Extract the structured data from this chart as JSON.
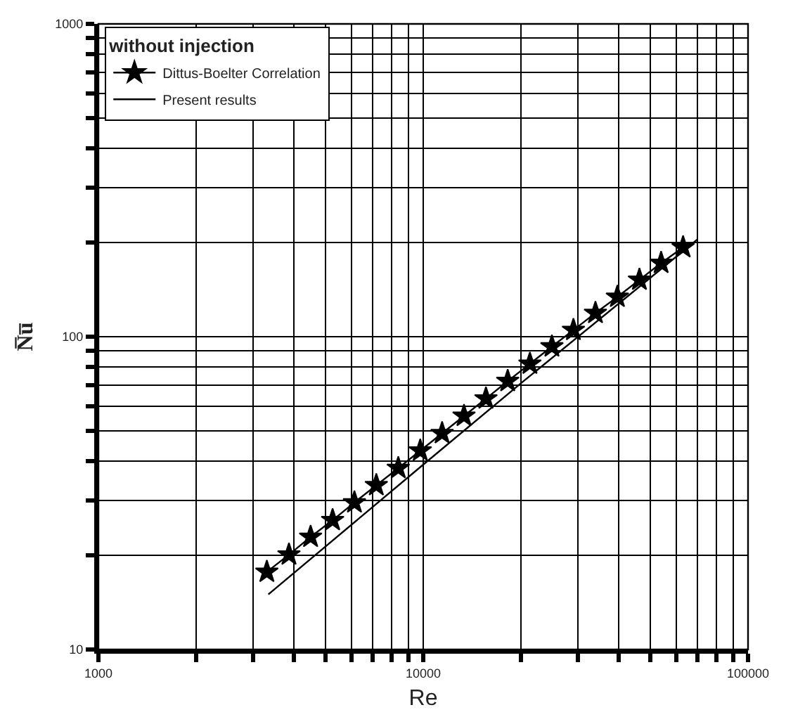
{
  "chart_data": {
    "type": "line",
    "xlabel": "Re",
    "ylabel": "N̅u̅",
    "legend_title": "without injection",
    "log": "xy",
    "grid": true,
    "legend": "top left",
    "xlim": [
      1000,
      100000
    ],
    "ylim": [
      10,
      1000
    ],
    "xticks": [
      1000,
      {
        "value": 2000,
        "label": null
      },
      {
        "value": 3000,
        "label": null
      },
      {
        "value": 4000,
        "label": null
      },
      {
        "value": 5000,
        "label": null
      },
      {
        "value": 6000,
        "label": null
      },
      {
        "value": 7000,
        "label": null
      },
      {
        "value": 8000,
        "label": null
      },
      {
        "value": 9000,
        "label": null
      },
      10000,
      {
        "value": 20000,
        "label": null
      },
      {
        "value": 30000,
        "label": null
      },
      {
        "value": 40000,
        "label": null
      },
      {
        "value": 50000,
        "label": null
      },
      {
        "value": 60000,
        "label": null
      },
      {
        "value": 70000,
        "label": null
      },
      {
        "value": 80000,
        "label": null
      },
      {
        "value": 90000,
        "label": null
      },
      100000
    ],
    "yticks": [
      10,
      {
        "value": 20,
        "label": null
      },
      {
        "value": 30,
        "label": null
      },
      {
        "value": 40,
        "label": null
      },
      {
        "value": 50,
        "label": null
      },
      {
        "value": 60,
        "label": null
      },
      {
        "value": 70,
        "label": null
      },
      {
        "value": 80,
        "label": null
      },
      {
        "value": 90,
        "label": null
      },
      100,
      {
        "value": 200,
        "label": null
      },
      {
        "value": 300,
        "label": null
      },
      {
        "value": 400,
        "label": null
      },
      {
        "value": 500,
        "label": null
      },
      {
        "value": 600,
        "label": null
      },
      {
        "value": 700,
        "label": null
      },
      {
        "value": 800,
        "label": null
      },
      {
        "value": 900,
        "label": null
      },
      1000
    ],
    "series": [
      {
        "name": "Dittus-Boelter Correlation",
        "color": "#000000",
        "marker": "star",
        "line_style": "solid",
        "x": [
          3300,
          3860,
          4500,
          5260,
          6140,
          7170,
          8380,
          9790,
          11430,
          13350,
          15600,
          18200,
          21300,
          24900,
          29000,
          33900,
          39600,
          46300,
          54000,
          63100
        ],
        "values": [
          17.7,
          20.1,
          22.9,
          25.9,
          29.5,
          33.5,
          38,
          43.2,
          49.1,
          55.8,
          63.4,
          72.1,
          81.9,
          93,
          105,
          119,
          134,
          152,
          172,
          193
        ]
      },
      {
        "name": "Present results",
        "color": "#000000",
        "marker": "none",
        "line_style": "solid",
        "x": [
          3335,
          10000,
          20000,
          70000
        ],
        "values": [
          15,
          39,
          71,
          205
        ]
      }
    ]
  }
}
